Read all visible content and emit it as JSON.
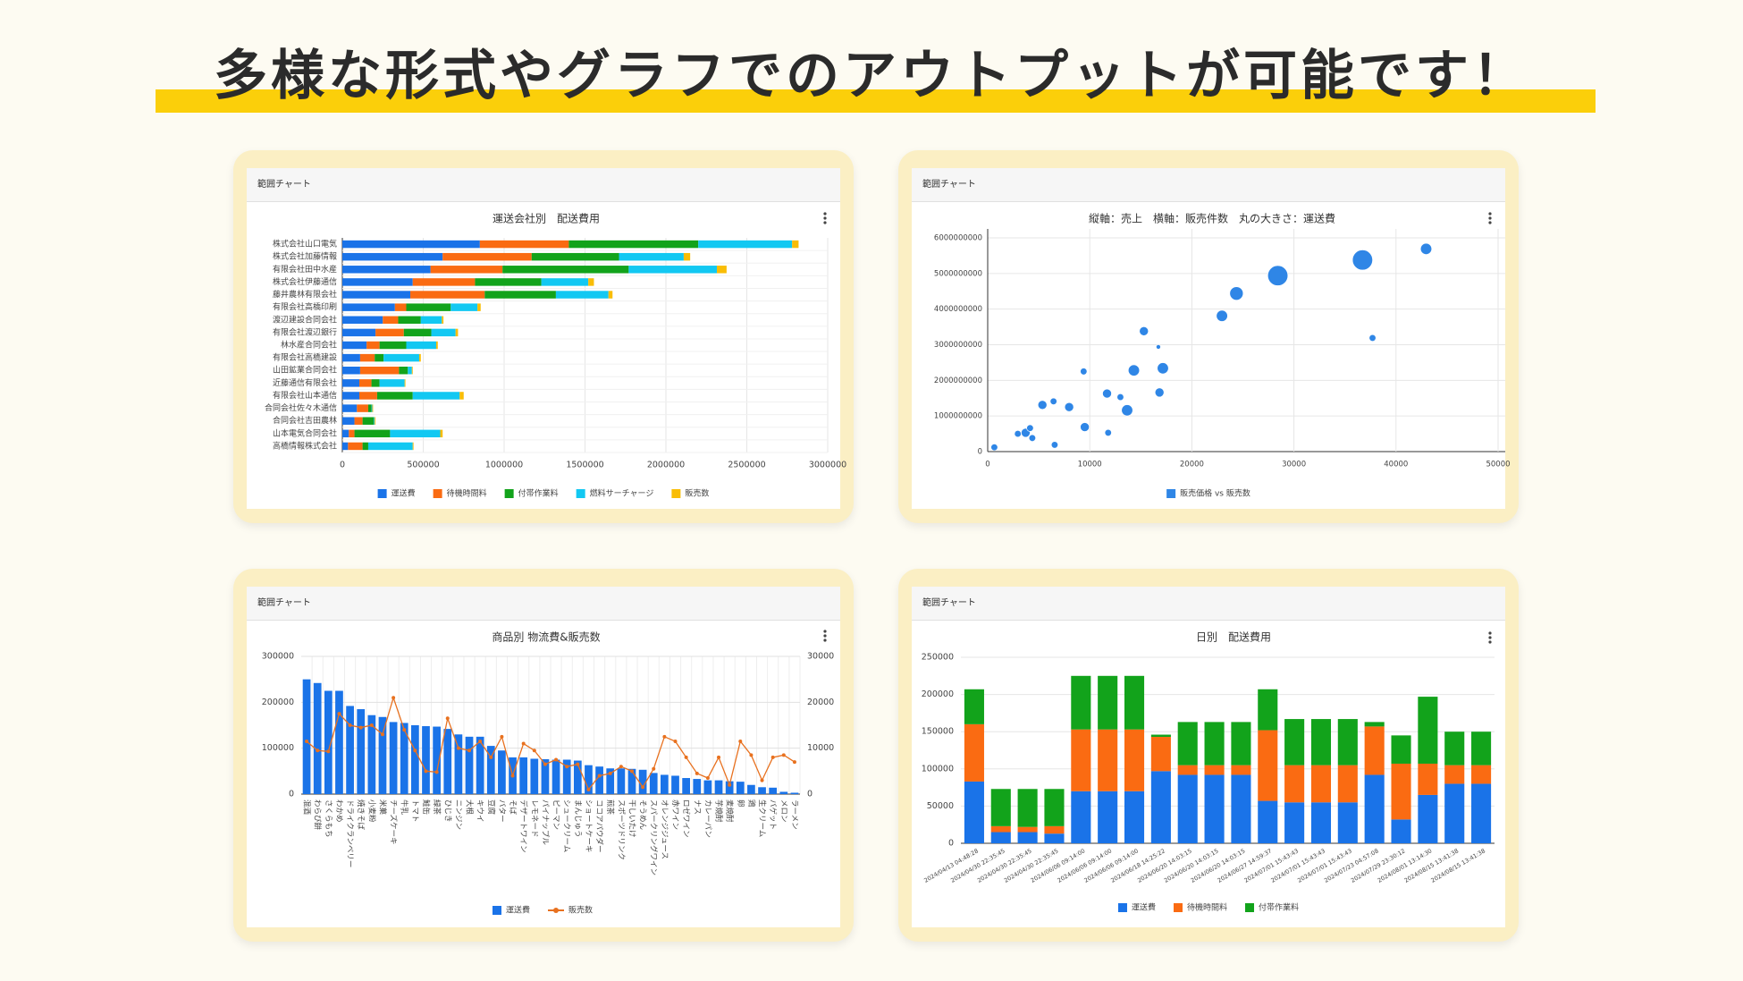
{
  "header": {
    "title": "多様な形式やグラフでのアウトプットが可能です！"
  },
  "chart_data": [
    {
      "type": "bar",
      "horizontal": true,
      "stacked": true,
      "panel_title": "範囲チャート",
      "title": "運送会社別　配送費用",
      "categories": [
        "株式会社山口電気",
        "株式会社加藤情報",
        "有限会社田中水産",
        "株式会社伊藤通信",
        "藤井農林有限会社",
        "有限会社高橋印刷",
        "渡辺建設合同会社",
        "有限会社渡辺銀行",
        "林水産合同会社",
        "有限会社高橋建設",
        "山田鉱業合同会社",
        "近藤通信有限会社",
        "有限会社山本通信",
        "合同会社佐々木通信",
        "合同会社吉田農林",
        "山本電気合同会社",
        "高橋情報株式会社"
      ],
      "series": [
        {
          "name": "運送費",
          "color": "#1a73e8",
          "values": [
            850000,
            620000,
            545000,
            435000,
            420000,
            325000,
            250000,
            205000,
            150000,
            110000,
            110000,
            105000,
            105000,
            90000,
            75000,
            40000,
            35000
          ]
        },
        {
          "name": "待機時間料",
          "color": "#fa6b12",
          "values": [
            550000,
            550000,
            445000,
            385000,
            460000,
            70000,
            95000,
            175000,
            80000,
            90000,
            240000,
            75000,
            110000,
            70000,
            50000,
            35000,
            90000
          ]
        },
        {
          "name": "付帯作業料",
          "color": "#12a31b",
          "values": [
            800000,
            540000,
            780000,
            410000,
            440000,
            275000,
            140000,
            170000,
            165000,
            55000,
            55000,
            50000,
            220000,
            20000,
            70000,
            220000,
            35000
          ]
        },
        {
          "name": "燃料サーチャージ",
          "color": "#12c8f2",
          "values": [
            580000,
            400000,
            545000,
            290000,
            325000,
            165000,
            130000,
            150000,
            185000,
            220000,
            25000,
            155000,
            290000,
            5000,
            5000,
            310000,
            275000
          ]
        },
        {
          "name": "販売数",
          "color": "#f9bd06",
          "values": [
            40000,
            40000,
            60000,
            35000,
            25000,
            20000,
            10000,
            15000,
            10000,
            10000,
            5000,
            5000,
            25000,
            5000,
            5000,
            15000,
            5000
          ]
        }
      ],
      "xlim": [
        0,
        3000000
      ],
      "xticks": [
        0,
        500000,
        1000000,
        1500000,
        2000000,
        2500000,
        3000000
      ],
      "grid": true
    },
    {
      "type": "scatter",
      "panel_title": "範囲チャート",
      "title": "縦軸：売上　横軸：販売件数　丸の大きさ：運送費",
      "series": [
        {
          "name": "販売価格 vs 販売数",
          "color": "#2f86e6",
          "x": [
            650,
            2950,
            3720,
            4150,
            4370,
            5360,
            6450,
            6560,
            7980,
            9400,
            9510,
            11690,
            11800,
            13000,
            13660,
            14320,
            15300,
            16720,
            16830,
            17160,
            22950,
            24370,
            28420,
            36720,
            37700,
            42950
          ],
          "values": [
            120000000,
            500000000,
            530000000,
            660000000,
            380000000,
            1310000000,
            1410000000,
            190000000,
            1250000000,
            2250000000,
            690000000,
            1630000000,
            530000000,
            1530000000,
            1160000000,
            2280000000,
            3380000000,
            2940000000,
            1660000000,
            2340000000,
            3810000000,
            4440000000,
            4940000000,
            5380000000,
            3190000000,
            5690000000
          ],
          "sizes": [
            9,
            9,
            16,
            9,
            9,
            16,
            9,
            9,
            16,
            9,
            16,
            16,
            9,
            9,
            25,
            25,
            16,
            4,
            16,
            25,
            25,
            36,
            81,
            81,
            9,
            25
          ]
        }
      ],
      "xlim": [
        0,
        50000
      ],
      "xticks": [
        0,
        10000,
        20000,
        30000,
        40000,
        50000
      ],
      "ylim": [
        0,
        6000000000
      ],
      "yticks": [
        0,
        1000000000,
        2000000000,
        3000000000,
        4000000000,
        5000000000,
        6000000000
      ],
      "grid": true
    },
    {
      "type": "combo",
      "panel_title": "範囲チャート",
      "title": "商品別 物流費&販売数",
      "categories": [
        "混酒",
        "わらび餅",
        "さくらもち",
        "わかめ",
        "ドライクランベリー",
        "焼きそば",
        "小麦粉",
        "米菓",
        "チーズケーキ",
        "牛乳",
        "トマト",
        "鮭缶",
        "緑茶",
        "ひじき",
        "ニンジン",
        "大根",
        "キウイ",
        "豆腐",
        "バター",
        "そば",
        "デザートワイン",
        "レモネード",
        "パイナップル",
        "ピーマン",
        "シュークリーム",
        "まんじゅう",
        "ショートケーキ",
        "ココアパウダー",
        "煎茶",
        "スポーツドリンク",
        "干しいたけ",
        "そうめん",
        "スパークリングワイン",
        "オレンジジュース",
        "赤ワイン",
        "ロゼワイン",
        "ナス",
        "カレーパン",
        "芋焼酎",
        "麦焼酎",
        "卵",
        "鶏",
        "生クリーム",
        "バゲット",
        "メロン",
        "ラーメン"
      ],
      "series": [
        {
          "name": "運送費",
          "color": "#1a73e8",
          "kind": "bar",
          "values": [
            250000,
            242000,
            225000,
            225000,
            192000,
            185000,
            172000,
            168000,
            157000,
            155000,
            150000,
            148000,
            147000,
            142000,
            130000,
            125000,
            125000,
            105000,
            95000,
            80000,
            80000,
            77000,
            76000,
            75000,
            75000,
            73000,
            63000,
            60000,
            56000,
            56000,
            55000,
            53000,
            46000,
            42000,
            40000,
            35000,
            33000,
            30000,
            30000,
            28000,
            27000,
            20000,
            15000,
            14000,
            5000,
            3000
          ]
        },
        {
          "name": "販売数",
          "color": "#e8711f",
          "kind": "line",
          "axis": "y2",
          "values": [
            11500,
            9500,
            9300,
            17500,
            15000,
            14500,
            15000,
            13000,
            21000,
            14000,
            9500,
            5000,
            4800,
            16500,
            10000,
            9500,
            11500,
            8000,
            12500,
            4000,
            11000,
            9500,
            6500,
            7500,
            6000,
            6500,
            1000,
            4000,
            4500,
            6000,
            5000,
            1500,
            5500,
            12500,
            11500,
            8000,
            4500,
            3500,
            8000,
            2000,
            11500,
            8500,
            3000,
            8000,
            8500,
            7000
          ]
        }
      ],
      "ylim": [
        0,
        300000
      ],
      "yticks": [
        0,
        100000,
        200000,
        300000
      ],
      "y2lim": [
        0,
        30000
      ],
      "y2ticks": [
        0,
        10000,
        20000,
        30000
      ],
      "grid": true
    },
    {
      "type": "bar",
      "horizontal": false,
      "stacked": true,
      "panel_title": "範囲チャート",
      "title": "日別　配送費用",
      "categories": [
        "2024/04/13 04:48:28",
        "2024/04/30 22:35:45",
        "2024/04/30 22:35:45",
        "2024/04/30 22:35:45",
        "2024/06/06 09:14:00",
        "2024/06/06 09:14:00",
        "2024/06/06 09:14:00",
        "2024/06/18 14:25:22",
        "2024/06/20 14:03:15",
        "2024/06/20 14:03:15",
        "2024/06/20 14:03:15",
        "2024/06/27 14:59:37",
        "2024/07/01 15:43:43",
        "2024/07/01 15:43:43",
        "2024/07/01 15:43:43",
        "2024/07/23 04:57:08",
        "2024/07/29 23:30:12",
        "2024/08/01 13:14:30",
        "2024/08/15 13:41:38",
        "2024/08/15 13:41:38"
      ],
      "series": [
        {
          "name": "運送費",
          "color": "#1a73e8",
          "values": [
            83000,
            15000,
            15000,
            13000,
            70000,
            70000,
            70000,
            97000,
            92000,
            92000,
            92000,
            57000,
            55000,
            55000,
            55000,
            92000,
            32000,
            65000,
            80000,
            80000
          ]
        },
        {
          "name": "待機時間料",
          "color": "#fa6b12",
          "values": [
            77000,
            8000,
            7000,
            10000,
            83000,
            83000,
            83000,
            46000,
            13000,
            13000,
            13000,
            95000,
            50000,
            50000,
            50000,
            65000,
            75000,
            42000,
            25000,
            25000
          ]
        },
        {
          "name": "付帯作業料",
          "color": "#12a31b",
          "values": [
            47000,
            50000,
            51000,
            50000,
            72000,
            72000,
            72000,
            3000,
            58000,
            58000,
            58000,
            55000,
            62000,
            62000,
            62000,
            6000,
            38000,
            90000,
            45000,
            45000
          ]
        }
      ],
      "ylim": [
        0,
        250000
      ],
      "yticks": [
        0,
        50000,
        100000,
        150000,
        200000,
        250000
      ],
      "grid": true
    }
  ]
}
